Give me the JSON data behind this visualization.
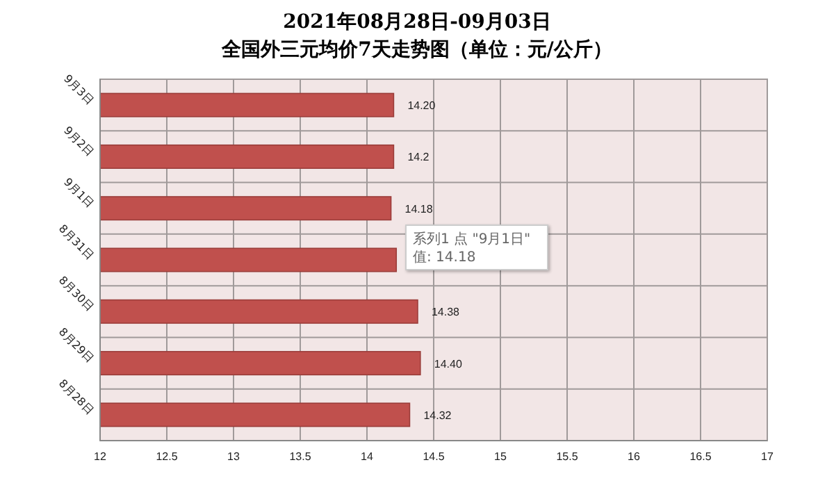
{
  "chart_data": {
    "type": "bar",
    "orientation": "horizontal",
    "title": "2021年08月28日-09月03日",
    "subtitle": "全国外三元均价7天走势图（单位：元/公斤）",
    "categories": [
      "9月3日",
      "9月2日",
      "9月1日",
      "8月31日",
      "8月30日",
      "8月29日",
      "8月28日"
    ],
    "values": [
      14.2,
      14.2,
      14.18,
      14.22,
      14.38,
      14.4,
      14.32
    ],
    "value_labels": [
      "14.20",
      "14.2",
      "14.18",
      null,
      "14.38",
      "14.40",
      "14.32"
    ],
    "color": "#c0504d",
    "xlim": [
      12,
      17
    ],
    "xticks": [
      12,
      12.5,
      13,
      13.5,
      14,
      14.5,
      15,
      15.5,
      16,
      16.5,
      17
    ],
    "grid": true,
    "annotations": [
      "系列1 点 \"9月1日\"",
      "值: 14.18"
    ]
  }
}
